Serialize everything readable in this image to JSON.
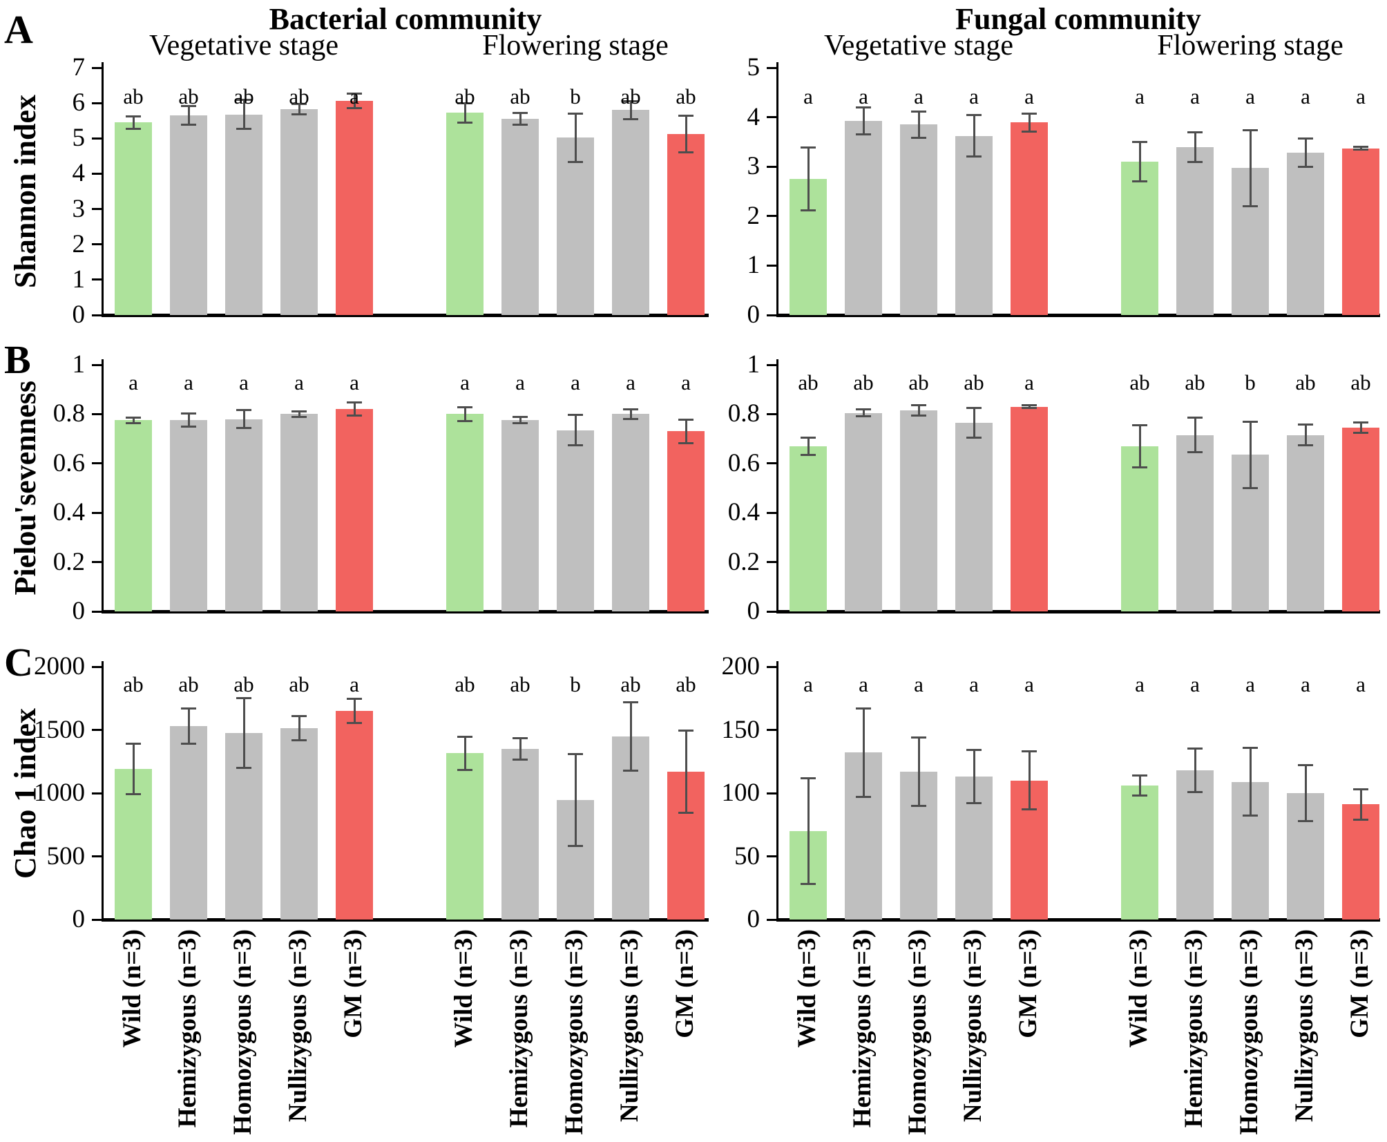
{
  "figure": {
    "panel_labels": [
      "A",
      "B",
      "C"
    ],
    "column_titles": [
      "Bacterial community",
      "Fungal community"
    ],
    "stage_titles": [
      "Vegetative stage",
      "Flowering stage"
    ],
    "row_ylabels": [
      "Shannon index",
      "Pielou'sevenness",
      "Chao 1 index"
    ],
    "categories": [
      "Wild (n=3)",
      "Hemizygous (n=3)",
      "Homozygous (n=3)",
      "Nullizygous (n=3)",
      "GM (n=3)"
    ],
    "colors": {
      "green": "#ade29b",
      "gray": "#bfbfbf",
      "red": "#f2635f",
      "error_bar": "#4d4d4d",
      "axis": "#000000"
    },
    "bar_color_keys": [
      "green",
      "gray",
      "gray",
      "gray",
      "red"
    ]
  },
  "chart_data": [
    {
      "id": "shannon-bacterial",
      "type": "bar",
      "row": 0,
      "col": 0,
      "ylabel": "Shannon index",
      "community": "Bacterial community",
      "ylim": [
        0,
        7
      ],
      "yticks": [
        0,
        1,
        2,
        3,
        4,
        5,
        6,
        7
      ],
      "categories": [
        "Wild (n=3)",
        "Hemizygous (n=3)",
        "Homozygous (n=3)",
        "Nullizygous (n=3)",
        "GM (n=3)"
      ],
      "groups": [
        {
          "stage": "Vegetative stage",
          "values": [
            5.45,
            5.65,
            5.68,
            5.83,
            6.06
          ],
          "errors": [
            0.18,
            0.26,
            0.41,
            0.15,
            0.21
          ],
          "letters": [
            "ab",
            "ab",
            "ab",
            "ab",
            "a"
          ]
        },
        {
          "stage": "Flowering stage",
          "values": [
            5.72,
            5.55,
            5.02,
            5.8,
            5.12
          ],
          "errors": [
            0.27,
            0.16,
            0.68,
            0.25,
            0.52
          ],
          "letters": [
            "ab",
            "ab",
            "b",
            "ab",
            "ab"
          ]
        }
      ]
    },
    {
      "id": "shannon-fungal",
      "type": "bar",
      "row": 0,
      "col": 1,
      "ylabel": "Shannon index",
      "community": "Fungal community",
      "ylim": [
        0,
        5
      ],
      "yticks": [
        0,
        1,
        2,
        3,
        4,
        5
      ],
      "categories": [
        "Wild (n=3)",
        "Hemizygous (n=3)",
        "Homozygous (n=3)",
        "Nullizygous (n=3)",
        "GM (n=3)"
      ],
      "groups": [
        {
          "stage": "Vegetative stage",
          "values": [
            2.75,
            3.92,
            3.85,
            3.62,
            3.89
          ],
          "errors": [
            0.64,
            0.27,
            0.27,
            0.42,
            0.18
          ],
          "letters": [
            "a",
            "a",
            "a",
            "a",
            "a"
          ]
        },
        {
          "stage": "Flowering stage",
          "values": [
            3.1,
            3.4,
            2.97,
            3.28,
            3.37
          ],
          "errors": [
            0.4,
            0.3,
            0.77,
            0.29,
            0.03
          ],
          "letters": [
            "a",
            "a",
            "a",
            "a",
            "a"
          ]
        }
      ]
    },
    {
      "id": "pielou-bacterial",
      "type": "bar",
      "row": 1,
      "col": 0,
      "ylabel": "Pielou'sevenness",
      "community": "Bacterial community",
      "ylim": [
        0,
        1
      ],
      "yticks": [
        0,
        0.2,
        0.4,
        0.6,
        0.8,
        1
      ],
      "categories": [
        "Wild (n=3)",
        "Hemizygous (n=3)",
        "Homozygous (n=3)",
        "Nullizygous (n=3)",
        "GM (n=3)"
      ],
      "groups": [
        {
          "stage": "Vegetative stage",
          "values": [
            0.775,
            0.775,
            0.78,
            0.8,
            0.82
          ],
          "errors": [
            0.012,
            0.027,
            0.037,
            0.012,
            0.027
          ],
          "letters": [
            "a",
            "a",
            "a",
            "a",
            "a"
          ]
        },
        {
          "stage": "Flowering stage",
          "values": [
            0.8,
            0.775,
            0.735,
            0.8,
            0.73
          ],
          "errors": [
            0.027,
            0.013,
            0.062,
            0.02,
            0.047
          ],
          "letters": [
            "a",
            "a",
            "a",
            "a",
            "a"
          ]
        }
      ]
    },
    {
      "id": "pielou-fungal",
      "type": "bar",
      "row": 1,
      "col": 1,
      "ylabel": "Pielou'sevenness",
      "community": "Fungal community",
      "ylim": [
        0,
        1
      ],
      "yticks": [
        0,
        0.2,
        0.4,
        0.6,
        0.8,
        1
      ],
      "categories": [
        "Wild (n=3)",
        "Hemizygous (n=3)",
        "Homozygous (n=3)",
        "Nullizygous (n=3)",
        "GM (n=3)"
      ],
      "groups": [
        {
          "stage": "Vegetative stage",
          "values": [
            0.67,
            0.805,
            0.815,
            0.765,
            0.83
          ],
          "errors": [
            0.035,
            0.015,
            0.02,
            0.06,
            0.005
          ],
          "letters": [
            "ab",
            "ab",
            "ab",
            "ab",
            "a"
          ]
        },
        {
          "stage": "Flowering stage",
          "values": [
            0.67,
            0.715,
            0.635,
            0.715,
            0.745
          ],
          "errors": [
            0.085,
            0.07,
            0.135,
            0.042,
            0.02
          ],
          "letters": [
            "ab",
            "ab",
            "b",
            "ab",
            "ab"
          ]
        }
      ]
    },
    {
      "id": "chao1-bacterial",
      "type": "bar",
      "row": 2,
      "col": 0,
      "ylabel": "Chao 1 index",
      "community": "Bacterial community",
      "ylim": [
        0,
        2000
      ],
      "yticks": [
        0,
        500,
        1000,
        1500,
        2000
      ],
      "categories": [
        "Wild (n=3)",
        "Hemizygous (n=3)",
        "Homozygous (n=3)",
        "Nullizygous (n=3)",
        "GM (n=3)"
      ],
      "groups": [
        {
          "stage": "Vegetative stage",
          "values": [
            1190,
            1530,
            1475,
            1515,
            1650
          ],
          "errors": [
            200,
            140,
            275,
            95,
            95
          ],
          "letters": [
            "ab",
            "ab",
            "ab",
            "ab",
            "a"
          ]
        },
        {
          "stage": "Flowering stage",
          "values": [
            1315,
            1350,
            945,
            1450,
            1170
          ],
          "errors": [
            130,
            85,
            365,
            270,
            325
          ],
          "letters": [
            "ab",
            "ab",
            "b",
            "ab",
            "ab"
          ]
        }
      ]
    },
    {
      "id": "chao1-fungal",
      "type": "bar",
      "row": 2,
      "col": 1,
      "ylabel": "Chao 1 index",
      "community": "Fungal community",
      "ylim": [
        0,
        200
      ],
      "yticks": [
        0,
        50,
        100,
        150,
        200
      ],
      "categories": [
        "Wild (n=3)",
        "Hemizygous (n=3)",
        "Homozygous (n=3)",
        "Nullizygous (n=3)",
        "GM (n=3)"
      ],
      "groups": [
        {
          "stage": "Vegetative stage",
          "values": [
            70,
            132,
            117,
            113,
            110
          ],
          "errors": [
            42,
            35,
            27,
            21,
            23
          ],
          "letters": [
            "a",
            "a",
            "a",
            "a",
            "a"
          ]
        },
        {
          "stage": "Flowering stage",
          "values": [
            106,
            118,
            109,
            100,
            91
          ],
          "errors": [
            8,
            17,
            27,
            22,
            12
          ],
          "letters": [
            "a",
            "a",
            "a",
            "a",
            "a"
          ]
        }
      ]
    }
  ]
}
